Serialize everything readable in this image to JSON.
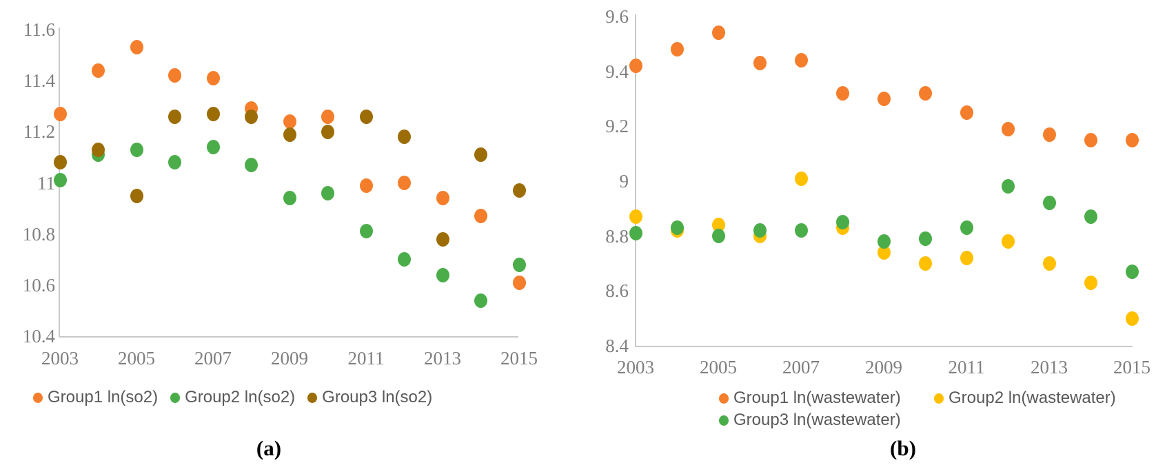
{
  "figure": {
    "background": "#FFFFFF",
    "axis_line_color": "#C9C9C9",
    "tick_text_color": "#7F7F7F",
    "legend_text_color": "#595959"
  },
  "chart_data": [
    {
      "type": "scatter",
      "caption": "(a)",
      "x": [
        2003,
        2004,
        2005,
        2006,
        2007,
        2008,
        2009,
        2010,
        2011,
        2012,
        2013,
        2014,
        2015
      ],
      "xtick_labels": [
        2003,
        2005,
        2007,
        2009,
        2011,
        2013,
        2015
      ],
      "ylim": [
        10.4,
        11.6
      ],
      "yticks": [
        11.6,
        11.4,
        11.2,
        11,
        10.8,
        10.6,
        10.4
      ],
      "grid": false,
      "legend_position": "bottom",
      "xlabel": "",
      "ylabel": "",
      "series": [
        {
          "name": "Group1 ln(so2)",
          "color": "#F47E2B",
          "values": [
            11.27,
            11.44,
            11.53,
            11.42,
            11.41,
            11.29,
            11.24,
            11.26,
            10.99,
            11.0,
            10.94,
            10.87,
            10.61
          ]
        },
        {
          "name": "Group2 ln(so2)",
          "color": "#4BAD49",
          "values": [
            11.01,
            11.11,
            11.13,
            11.08,
            11.14,
            11.07,
            10.94,
            10.96,
            10.81,
            10.7,
            10.64,
            10.54,
            10.68
          ]
        },
        {
          "name": "Group3 ln(so2)",
          "color": "#9C6D07",
          "values": [
            11.08,
            11.13,
            10.95,
            11.26,
            11.27,
            11.26,
            11.19,
            11.2,
            11.26,
            11.18,
            10.78,
            11.11,
            10.97
          ]
        }
      ]
    },
    {
      "type": "scatter",
      "caption": "(b)",
      "x": [
        2003,
        2004,
        2005,
        2006,
        2007,
        2008,
        2009,
        2010,
        2011,
        2012,
        2013,
        2014,
        2015
      ],
      "xtick_labels": [
        2003,
        2005,
        2007,
        2009,
        2011,
        2013,
        2015
      ],
      "ylim": [
        8.4,
        9.6
      ],
      "yticks": [
        9.6,
        9.4,
        9.2,
        9,
        8.8,
        8.6,
        8.4
      ],
      "grid": false,
      "legend_position": "bottom",
      "xlabel": "",
      "ylabel": "",
      "series": [
        {
          "name": "Group1 ln(wastewater)",
          "color": "#F47E2B",
          "values": [
            9.42,
            9.48,
            9.54,
            9.43,
            9.44,
            9.32,
            9.3,
            9.32,
            9.25,
            9.19,
            9.17,
            9.15,
            9.15
          ]
        },
        {
          "name": "Group2 ln(wastewater)",
          "color": "#FFC000",
          "values": [
            8.87,
            8.82,
            8.84,
            8.8,
            9.01,
            8.83,
            8.74,
            8.7,
            8.72,
            8.78,
            8.7,
            8.63,
            8.5
          ]
        },
        {
          "name": "Group3 ln(wastewater)",
          "color": "#4BAD49",
          "values": [
            8.81,
            8.83,
            8.8,
            8.82,
            8.82,
            8.85,
            8.78,
            8.79,
            8.83,
            8.98,
            8.92,
            8.87,
            8.67
          ]
        }
      ]
    }
  ]
}
